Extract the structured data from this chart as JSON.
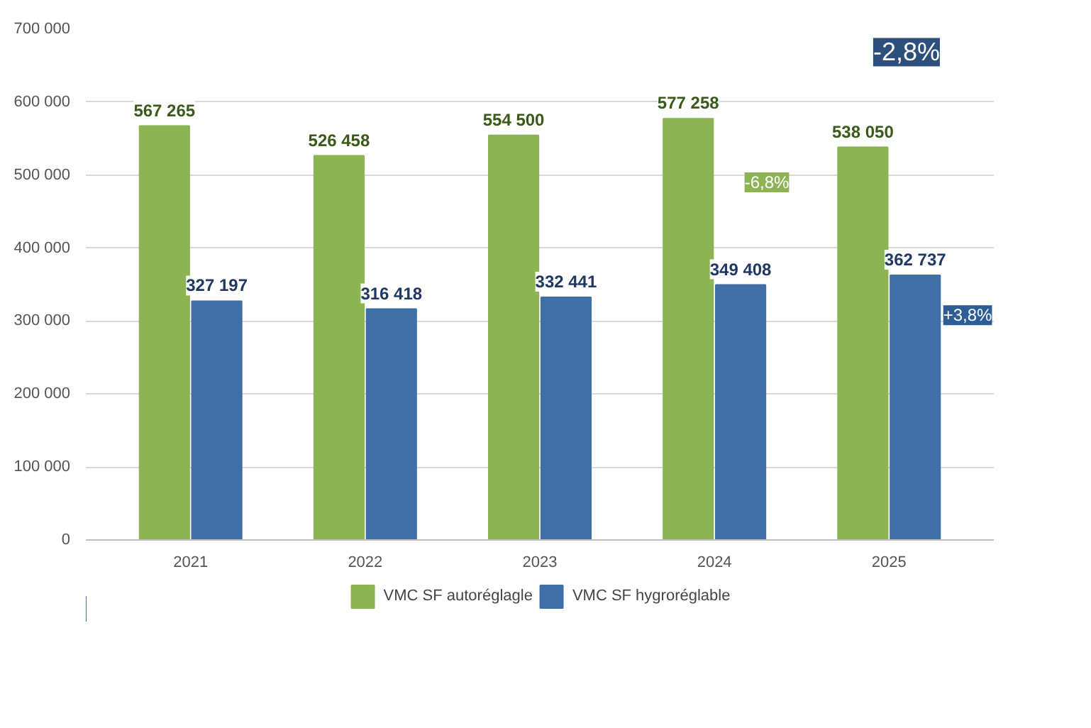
{
  "chart_data": {
    "type": "bar",
    "categories": [
      "2021",
      "2022",
      "2023",
      "2024",
      "2025"
    ],
    "series": [
      {
        "name": "VMC SF autoréglagle",
        "color": "#8cb453",
        "values": [
          567265,
          526458,
          554500,
          577258,
          538050
        ],
        "value_labels": [
          "567 265",
          "526 458",
          "554 500",
          "577 258",
          "538 050"
        ]
      },
      {
        "name": "VMC SF hygroréglable",
        "color": "#3f6fa6",
        "values": [
          327197,
          316418,
          332441,
          349408,
          362737
        ],
        "value_labels": [
          "327 197",
          "316 418",
          "332 441",
          "349 408",
          "362 737"
        ]
      }
    ],
    "ylim": [
      0,
      700000
    ],
    "yticks": [
      {
        "value": 0,
        "label": "0"
      },
      {
        "value": 100000,
        "label": "100 000"
      },
      {
        "value": 200000,
        "label": "200 000"
      },
      {
        "value": 300000,
        "label": "300 000"
      },
      {
        "value": 400000,
        "label": "400 000"
      },
      {
        "value": 500000,
        "label": "500 000"
      },
      {
        "value": 600000,
        "label": "600 000"
      },
      {
        "value": 700000,
        "label": "700 000"
      }
    ],
    "grid": "y",
    "legend": "bottom",
    "annotations": [
      "-2,8%",
      "-6,8%",
      "+3,8%"
    ]
  }
}
